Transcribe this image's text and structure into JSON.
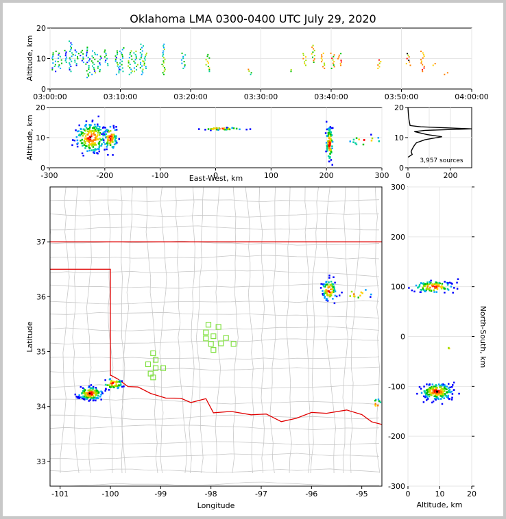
{
  "chart_data": [
    {
      "type": "scatter",
      "name": "time-altitude",
      "title": "Oklahoma LMA 0300-0400 UTC July 29, 2020",
      "xlabel": "",
      "ylabel": "Altitude, km",
      "x_tick_labels": [
        "03:00:00",
        "03:10:00",
        "03:20:00",
        "03:30:00",
        "03:40:00",
        "03:50:00",
        "04:00:00"
      ],
      "x_range_min": [
        0,
        60
      ],
      "ylim": [
        0,
        20
      ],
      "y_ticks": [
        0,
        10,
        20
      ],
      "columns": [
        {
          "t": 0.6,
          "lo": 6,
          "hi": 13
        },
        {
          "t": 1.4,
          "lo": 7,
          "hi": 12
        },
        {
          "t": 2.2,
          "lo": 9,
          "hi": 13
        },
        {
          "t": 3.0,
          "lo": 6,
          "hi": 16
        },
        {
          "t": 3.8,
          "lo": 8,
          "hi": 13
        },
        {
          "t": 4.6,
          "lo": 9,
          "hi": 13
        },
        {
          "t": 5.4,
          "lo": 4,
          "hi": 14
        },
        {
          "t": 6.2,
          "lo": 5,
          "hi": 13
        },
        {
          "t": 7.0,
          "lo": 6,
          "hi": 12
        },
        {
          "t": 8.0,
          "lo": 8,
          "hi": 13
        },
        {
          "t": 9.6,
          "lo": 5,
          "hi": 13
        },
        {
          "t": 10.2,
          "lo": 6,
          "hi": 14
        },
        {
          "t": 11.4,
          "lo": 5,
          "hi": 13
        },
        {
          "t": 12.2,
          "lo": 6,
          "hi": 13
        },
        {
          "t": 13.0,
          "lo": 5,
          "hi": 15
        },
        {
          "t": 13.6,
          "lo": 7,
          "hi": 12
        },
        {
          "t": 16.2,
          "lo": 5,
          "hi": 15
        },
        {
          "t": 19.0,
          "lo": 7,
          "hi": 12
        },
        {
          "t": 22.4,
          "lo": 6,
          "hi": 12
        },
        {
          "t": 28.4,
          "lo": 5,
          "hi": 7
        },
        {
          "t": 34.4,
          "lo": 6,
          "hi": 7
        },
        {
          "t": 36.2,
          "lo": 8,
          "hi": 12
        },
        {
          "t": 37.4,
          "lo": 9,
          "hi": 15
        },
        {
          "t": 38.8,
          "lo": 7,
          "hi": 12
        },
        {
          "t": 40.2,
          "lo": 7,
          "hi": 12
        },
        {
          "t": 41.2,
          "lo": 8,
          "hi": 12
        },
        {
          "t": 46.8,
          "lo": 7,
          "hi": 10
        },
        {
          "t": 51.0,
          "lo": 8,
          "hi": 12
        },
        {
          "t": 53.0,
          "lo": 6,
          "hi": 13
        },
        {
          "t": 54.8,
          "lo": 8,
          "hi": 9
        },
        {
          "t": 56.4,
          "lo": 5,
          "hi": 6
        }
      ]
    },
    {
      "type": "scatter",
      "name": "east-west-altitude",
      "xlabel": "East-West, km",
      "ylabel": "Altitude, km",
      "xlim": [
        -300,
        300
      ],
      "ylim": [
        0,
        20
      ],
      "x_ticks": [
        -300,
        -200,
        -100,
        0,
        100,
        200,
        300
      ],
      "y_ticks": [
        0,
        10,
        20
      ],
      "clusters": [
        {
          "x": -225,
          "y": 10,
          "sx": 14,
          "sy": 2.5,
          "n": 200
        },
        {
          "x": -190,
          "y": 10,
          "sx": 6,
          "sy": 2,
          "n": 80
        },
        {
          "x": 205,
          "y": 8,
          "sx": 3,
          "sy": 3,
          "n": 90
        },
        {
          "x": 10,
          "y": 13,
          "sx": 20,
          "sy": 0.2,
          "n": 40
        },
        {
          "x": 270,
          "y": 9,
          "sx": 15,
          "sy": 1,
          "n": 15
        }
      ]
    },
    {
      "type": "line",
      "name": "altitude-histogram",
      "annotation": "3,957 sources",
      "xlim": [
        0,
        300
      ],
      "ylim": [
        0,
        20
      ],
      "x_ticks": [
        0,
        200
      ],
      "y_ticks": [
        0,
        10,
        20
      ],
      "points": [
        [
          0,
          20
        ],
        [
          2,
          18
        ],
        [
          5,
          16
        ],
        [
          10,
          14
        ],
        [
          60,
          13.6
        ],
        [
          300,
          12.9
        ],
        [
          80,
          12.4
        ],
        [
          30,
          12.0
        ],
        [
          90,
          11.0
        ],
        [
          160,
          10.3
        ],
        [
          80,
          9.3
        ],
        [
          40,
          8.3
        ],
        [
          30,
          7.4
        ],
        [
          20,
          6.2
        ],
        [
          15,
          5.3
        ],
        [
          20,
          4.4
        ],
        [
          5,
          3.7
        ],
        [
          0,
          3.5
        ]
      ]
    },
    {
      "type": "scatter",
      "name": "plan-view-map",
      "xlabel": "Longitude",
      "ylabel": "Latitude",
      "xlim": [
        -101.2,
        -94.6
      ],
      "ylim": [
        32.55,
        38.0
      ],
      "x_ticks": [
        -101,
        -100,
        -99,
        -98,
        -97,
        -96,
        -95
      ],
      "y_ticks": [
        33,
        34,
        35,
        36,
        37
      ],
      "clusters": [
        {
          "x": -100.4,
          "y": 34.24,
          "sx": 0.12,
          "sy": 0.06,
          "n": 150
        },
        {
          "x": -99.95,
          "y": 34.42,
          "sx": 0.1,
          "sy": 0.05,
          "n": 50
        },
        {
          "x": -95.65,
          "y": 36.12,
          "sx": 0.07,
          "sy": 0.1,
          "n": 80
        },
        {
          "x": -95.1,
          "y": 36.05,
          "sx": 0.15,
          "sy": 0.05,
          "n": 15
        },
        {
          "x": -94.7,
          "y": 34.05,
          "sx": 0.05,
          "sy": 0.05,
          "n": 10
        }
      ],
      "stations": [
        [
          -98.05,
          35.49
        ],
        [
          -97.85,
          35.45
        ],
        [
          -98.1,
          35.35
        ],
        [
          -97.95,
          35.28
        ],
        [
          -98.1,
          35.24
        ],
        [
          -97.7,
          35.25
        ],
        [
          -97.8,
          35.15
        ],
        [
          -97.55,
          35.14
        ],
        [
          -98.0,
          35.14
        ],
        [
          -97.95,
          35.03
        ],
        [
          -99.15,
          34.97
        ],
        [
          -99.1,
          34.85
        ],
        [
          -99.25,
          34.77
        ],
        [
          -99.1,
          34.7
        ],
        [
          -98.95,
          34.7
        ],
        [
          -99.2,
          34.6
        ],
        [
          -99.15,
          34.53
        ]
      ]
    },
    {
      "type": "scatter",
      "name": "altitude-north-south",
      "xlabel": "Altitude, km",
      "ylabel": "North-South, km",
      "xlim": [
        0,
        20
      ],
      "ylim": [
        -300,
        300
      ],
      "x_ticks": [
        0,
        10,
        20
      ],
      "y_ticks": [
        -300,
        -200,
        -100,
        0,
        100,
        200,
        300
      ],
      "clusters": [
        {
          "x": 9,
          "y": -110,
          "sx": 2.5,
          "sy": 8,
          "n": 200
        },
        {
          "x": 8,
          "y": 100,
          "sx": 3,
          "sy": 6,
          "n": 110
        },
        {
          "x": 12.8,
          "y": -24,
          "sx": 0.1,
          "sy": 2,
          "n": 3
        }
      ]
    }
  ]
}
